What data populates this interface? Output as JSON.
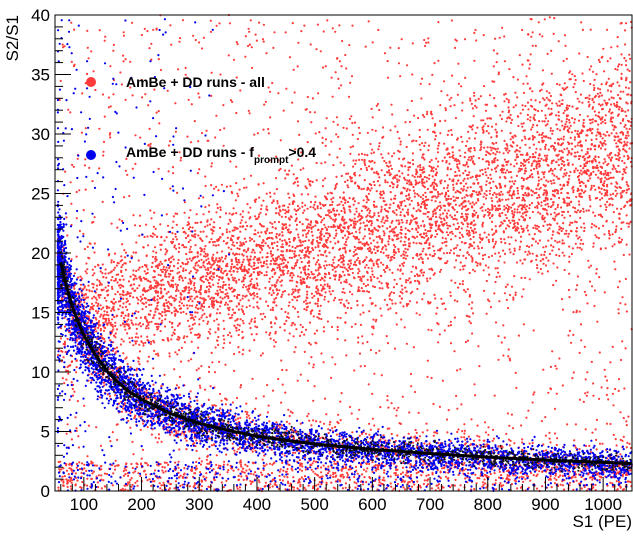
{
  "chart_data": {
    "type": "scatter",
    "xlabel": "S1 (PE)",
    "ylabel": "S2/S1",
    "xlim": [
      50,
      1050
    ],
    "ylim": [
      0,
      40
    ],
    "x_ticks": [
      100,
      200,
      300,
      400,
      500,
      600,
      700,
      800,
      900,
      1000
    ],
    "y_ticks": [
      0,
      5,
      10,
      15,
      20,
      25,
      30,
      35,
      40
    ],
    "x_tick_labels": [
      "100",
      "200",
      "300",
      "400",
      "500",
      "600",
      "700",
      "800",
      "900",
      "1000"
    ],
    "y_tick_labels": [
      "0",
      "5",
      "10",
      "15",
      "20",
      "25",
      "30",
      "35",
      "40"
    ],
    "grid": false,
    "legend_position": "top-left",
    "series": [
      {
        "name": "AmBe + DD runs - all",
        "color": "#ff3b3b",
        "marker": "dot",
        "description_points": [
          {
            "region": "nuclear-recoil band",
            "x_range": [
              50,
              1050
            ],
            "y_center_at_x": [
              [
                100,
                15
              ],
              [
                200,
                16
              ],
              [
                400,
                21
              ],
              [
                700,
                25
              ],
              [
                1000,
                29
              ]
            ]
          },
          {
            "region": "electron-recoil band",
            "x_range": [
              50,
              1050
            ],
            "y_follows": "fit curve"
          }
        ]
      },
      {
        "name": "AmBe + DD runs - f",
        "name_subscript": "prompt",
        "name_suffix": ">0.4",
        "color": "#0000ee",
        "marker": "dot"
      },
      {
        "name": "",
        "type": "line",
        "color": "#000000",
        "x": [
          60,
          70,
          80,
          90,
          100,
          120,
          140,
          160,
          180,
          200,
          250,
          300,
          350,
          400,
          450,
          500,
          600,
          700,
          800,
          900,
          1000,
          1050
        ],
        "y": [
          19.2,
          17.2,
          15.5,
          14.2,
          13.1,
          11.4,
          10.1,
          9.1,
          8.3,
          7.7,
          6.5,
          5.7,
          5.1,
          4.6,
          4.25,
          3.95,
          3.5,
          3.15,
          2.85,
          2.6,
          2.4,
          2.3
        ]
      }
    ]
  }
}
